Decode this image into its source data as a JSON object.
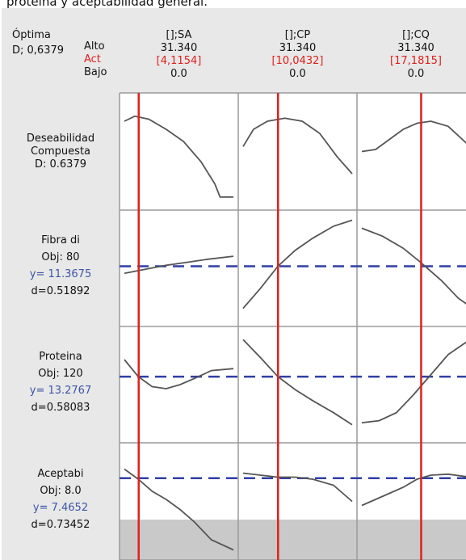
{
  "caption": "proteína y aceptabilidad general.",
  "header": {
    "optima_label": "Óptima",
    "composite_d": "D; 0,6379",
    "alto_label": "Alto",
    "act_label": "Act",
    "bajo_label": "Bajo"
  },
  "colors": {
    "current_line": "#e0201c",
    "target_line": "#2f3fa6",
    "curve": "#555555",
    "background": "#e8e8e8",
    "plot_background": "#ffffff"
  },
  "chart_data": {
    "type": "line",
    "title": "",
    "factors": [
      {
        "name": "[];SA",
        "high": "31.340",
        "current": "[4,1154]",
        "low": "0.0",
        "current_value": 4.1154,
        "range": [
          0.0,
          31.34
        ]
      },
      {
        "name": "[];CP",
        "high": "31.340",
        "current": "[10,0432]",
        "low": "0.0",
        "current_value": 10.0432,
        "range": [
          0.0,
          31.34
        ]
      },
      {
        "name": "[];CQ",
        "high": "31.340",
        "current": "[17,1815]",
        "low": "0.0",
        "current_value": 17.1815,
        "range": [
          0.0,
          31.34
        ]
      }
    ],
    "responses": [
      {
        "name": "Deseabilidad",
        "label_lines": [
          "Deseabilidad",
          "Compuesta",
          "D: 0.6379"
        ],
        "objective": null,
        "target_fraction": null,
        "series": [
          {
            "factor": "[];SA",
            "x": [
              0,
              3,
              7,
              12,
              17,
              22,
              26,
              27.5,
              28,
              30,
              31.34
            ],
            "y": [
              0.8,
              0.85,
              0.82,
              0.72,
              0.6,
              0.4,
              0.18,
              0.05,
              0.05,
              0.05,
              0.05
            ]
          },
          {
            "factor": "[];CP",
            "x": [
              0,
              3,
              7,
              12,
              17,
              22,
              27,
              31.34
            ],
            "y": [
              0.55,
              0.72,
              0.8,
              0.83,
              0.8,
              0.68,
              0.45,
              0.28
            ]
          },
          {
            "factor": "[];CQ",
            "x": [
              0,
              4,
              8,
              12,
              16,
              20,
              25,
              31.34
            ],
            "y": [
              0.5,
              0.52,
              0.62,
              0.72,
              0.78,
              0.8,
              0.75,
              0.55
            ]
          }
        ]
      },
      {
        "name": "Fibra di",
        "label_lines": [
          "Fibra di",
          "Obj: 80",
          "y= 11.3675",
          "d=0.51892"
        ],
        "objective": "Obj: 80",
        "target_fraction": 0.52,
        "series": [
          {
            "factor": "[];SA",
            "x": [
              0,
              6,
              12,
              18,
              24,
              31.34
            ],
            "y": [
              0.45,
              0.49,
              0.53,
              0.56,
              0.59,
              0.62
            ]
          },
          {
            "factor": "[];CP",
            "x": [
              0,
              5,
              10,
              15,
              20,
              26,
              31.34
            ],
            "y": [
              0.1,
              0.3,
              0.52,
              0.68,
              0.8,
              0.92,
              0.98
            ]
          },
          {
            "factor": "[];CQ",
            "x": [
              0,
              6,
              12,
              17,
              23,
              28,
              31.34
            ],
            "y": [
              0.9,
              0.82,
              0.7,
              0.56,
              0.38,
              0.2,
              0.12
            ]
          }
        ]
      },
      {
        "name": "Proteina",
        "label_lines": [
          "Proteina",
          "Obj: 120",
          "y= 13.2767",
          "d=0.58083"
        ],
        "objective": "Obj: 120",
        "target_fraction": 0.58,
        "series": [
          {
            "factor": "[];SA",
            "x": [
              0,
              4,
              8,
              12,
              16,
              20,
              25,
              31.34
            ],
            "y": [
              0.75,
              0.58,
              0.48,
              0.46,
              0.5,
              0.56,
              0.64,
              0.66
            ]
          },
          {
            "factor": "[];CP",
            "x": [
              0,
              5,
              10,
              15,
              20,
              26,
              31.34
            ],
            "y": [
              0.95,
              0.77,
              0.58,
              0.45,
              0.34,
              0.22,
              0.1
            ]
          },
          {
            "factor": "[];CQ",
            "x": [
              0,
              5,
              10,
              15,
              20,
              25,
              31.34
            ],
            "y": [
              0.12,
              0.14,
              0.22,
              0.4,
              0.6,
              0.8,
              0.95
            ]
          }
        ]
      },
      {
        "name": "Aceptabi",
        "label_lines": [
          "Aceptabi",
          "Obj: 8.0",
          "y= 7.4652",
          "d=0.73452"
        ],
        "objective": "Obj: 8.0",
        "target_fraction": 0.73,
        "series": [
          {
            "factor": "[];SA",
            "x": [
              0,
              4,
              8,
              12,
              16,
              20,
              25,
              31.34
            ],
            "y": [
              0.82,
              0.72,
              0.6,
              0.52,
              0.42,
              0.3,
              0.12,
              0.02
            ]
          },
          {
            "factor": "[];CP",
            "x": [
              0,
              5,
              10,
              15,
              20,
              26,
              31.34
            ],
            "y": [
              0.78,
              0.76,
              0.74,
              0.74,
              0.72,
              0.66,
              0.5
            ]
          },
          {
            "factor": "[];CQ",
            "x": [
              0,
              4,
              8,
              12,
              16,
              20,
              25,
              31.34
            ],
            "y": [
              0.46,
              0.52,
              0.58,
              0.64,
              0.72,
              0.76,
              0.77,
              0.74
            ]
          }
        ]
      }
    ]
  }
}
